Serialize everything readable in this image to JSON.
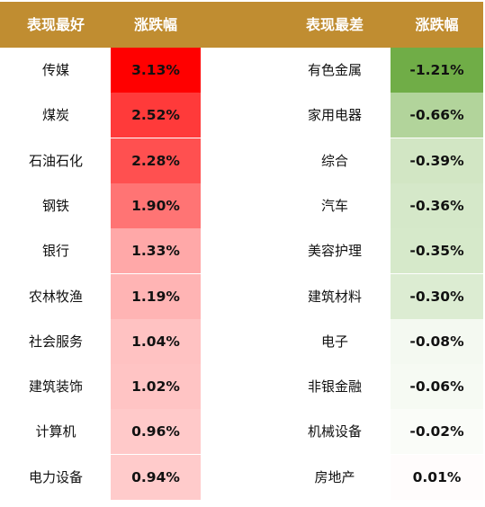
{
  "chart_data": {
    "type": "table",
    "headers": [
      "表现最好",
      "涨跌幅",
      "表现最差",
      "涨跌幅"
    ],
    "best": [
      {
        "name": "传媒",
        "value": "3.13%",
        "color": "#ff0000"
      },
      {
        "name": "煤炭",
        "value": "2.52%",
        "color": "#ff3a3a"
      },
      {
        "name": "石油石化",
        "value": "2.28%",
        "color": "#ff5050"
      },
      {
        "name": "钢铁",
        "value": "1.90%",
        "color": "#ff7474"
      },
      {
        "name": "银行",
        "value": "1.33%",
        "color": "#ffa8a8"
      },
      {
        "name": "农林牧渔",
        "value": "1.19%",
        "color": "#ffb4b4"
      },
      {
        "name": "社会服务",
        "value": "1.04%",
        "color": "#ffc2c2"
      },
      {
        "name": "建筑装饰",
        "value": "1.02%",
        "color": "#ffc4c4"
      },
      {
        "name": "计算机",
        "value": "0.96%",
        "color": "#ffc9c9"
      },
      {
        "name": "电力设备",
        "value": "0.94%",
        "color": "#ffcbcb"
      }
    ],
    "worst": [
      {
        "name": "有色金属",
        "value": "-1.21%",
        "color": "#70ad47"
      },
      {
        "name": "家用电器",
        "value": "-0.66%",
        "color": "#b2d49b"
      },
      {
        "name": "综合",
        "value": "-0.39%",
        "color": "#d2e6c4"
      },
      {
        "name": "汽车",
        "value": "-0.36%",
        "color": "#d5e8c9"
      },
      {
        "name": "美容护理",
        "value": "-0.35%",
        "color": "#d6e9ca"
      },
      {
        "name": "建筑材料",
        "value": "-0.30%",
        "color": "#dcecd2"
      },
      {
        "name": "电子",
        "value": "-0.08%",
        "color": "#f4f9f1"
      },
      {
        "name": "非银金融",
        "value": "-0.06%",
        "color": "#f6faf3"
      },
      {
        "name": "机械设备",
        "value": "-0.02%",
        "color": "#fafcf8"
      },
      {
        "name": "房地产",
        "value": "0.01%",
        "color": "#fffcfc"
      }
    ],
    "header_color": "#c08d31"
  }
}
